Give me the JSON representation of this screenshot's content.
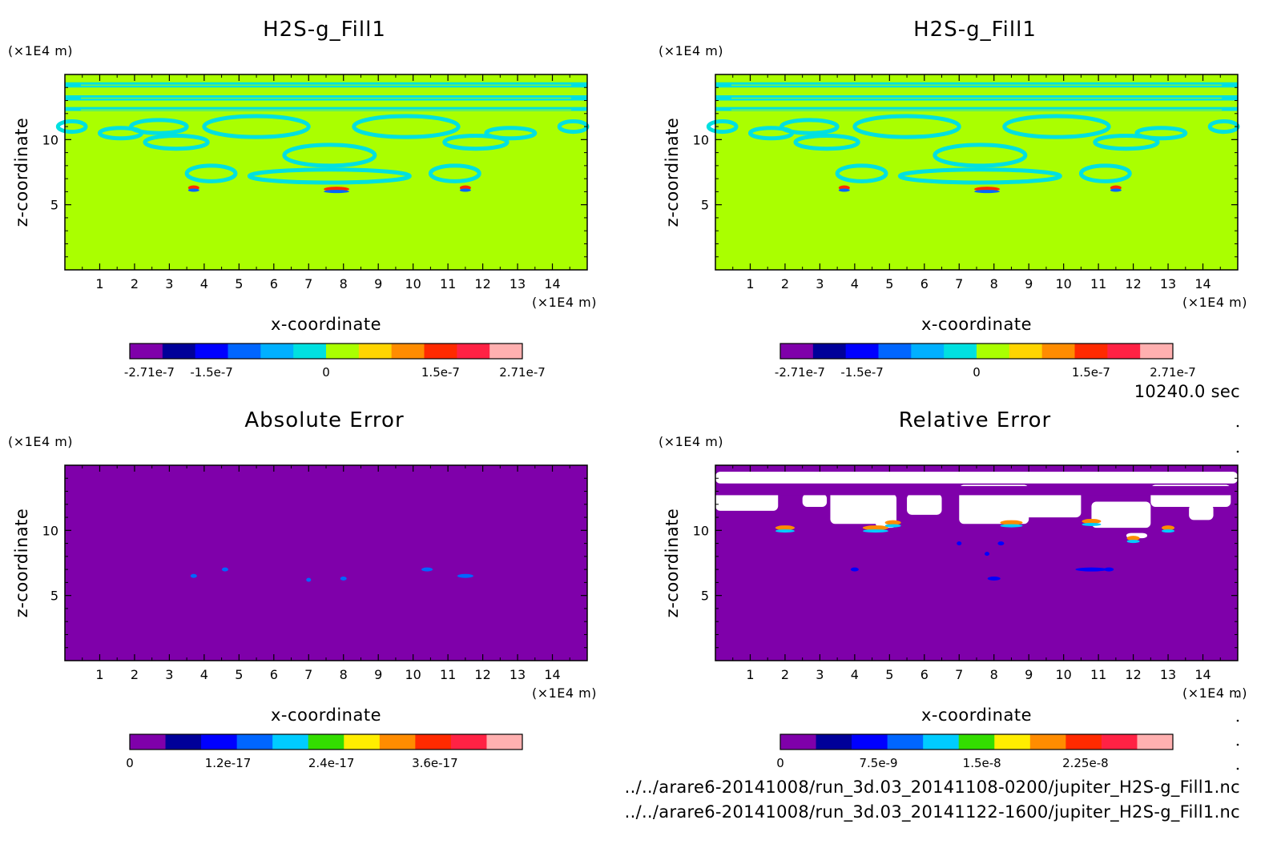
{
  "time_label": "10240.0 sec",
  "files": [
    "../../arare6-20141008/run_3d.03_20141108-0200/jupiter_H2S-g_Fill1.nc",
    "../../arare6-20141008/run_3d.03_20141122-1600/jupiter_H2S-g_Fill1.nc"
  ],
  "chart_data": [
    {
      "type": "heatmap",
      "title": "H2S-g_Fill1",
      "xlabel": "x-coordinate",
      "ylabel": "z-coordinate",
      "x_unit": "(×1E4 m)",
      "y_unit": "(×1E4 m)",
      "xlim": [
        0,
        15
      ],
      "ylim": [
        0,
        15
      ],
      "x_ticks": [
        "1",
        "2",
        "3",
        "4",
        "5",
        "6",
        "7",
        "8",
        "9",
        "10",
        "11",
        "12",
        "13",
        "14"
      ],
      "y_ticks": [
        "5",
        "10"
      ],
      "background_value": "0",
      "colorbar": {
        "colors": [
          "#7f00aa",
          "#000099",
          "#0000ff",
          "#0066ff",
          "#00b0ff",
          "#00e0e0",
          "#aaff00",
          "#ffd500",
          "#ff8c00",
          "#ff2a00",
          "#ff2244",
          "#ffb0b0"
        ],
        "ticks": [
          "-2.71e-7",
          "-1.5e-7",
          "0",
          "1.5e-7",
          "2.71e-7"
        ]
      }
    },
    {
      "type": "heatmap",
      "title": "H2S-g_Fill1",
      "xlabel": "x-coordinate",
      "ylabel": "z-coordinate",
      "x_unit": "(×1E4 m)",
      "y_unit": "(×1E4 m)",
      "xlim": [
        0,
        15
      ],
      "ylim": [
        0,
        15
      ],
      "x_ticks": [
        "1",
        "2",
        "3",
        "4",
        "5",
        "6",
        "7",
        "8",
        "9",
        "10",
        "11",
        "12",
        "13",
        "14"
      ],
      "y_ticks": [
        "5",
        "10"
      ],
      "background_value": "0",
      "colorbar": {
        "colors": [
          "#7f00aa",
          "#000099",
          "#0000ff",
          "#0066ff",
          "#00b0ff",
          "#00e0e0",
          "#aaff00",
          "#ffd500",
          "#ff8c00",
          "#ff2a00",
          "#ff2244",
          "#ffb0b0"
        ],
        "ticks": [
          "-2.71e-7",
          "-1.5e-7",
          "0",
          "1.5e-7",
          "2.71e-7"
        ]
      }
    },
    {
      "type": "heatmap",
      "title": "Absolute Error",
      "xlabel": "x-coordinate",
      "ylabel": "z-coordinate",
      "x_unit": "(×1E4 m)",
      "y_unit": "(×1E4 m)",
      "xlim": [
        0,
        15
      ],
      "ylim": [
        0,
        15
      ],
      "x_ticks": [
        "1",
        "2",
        "3",
        "4",
        "5",
        "6",
        "7",
        "8",
        "9",
        "10",
        "11",
        "12",
        "13",
        "14"
      ],
      "y_ticks": [
        "5",
        "10"
      ],
      "background_value": "0",
      "colorbar": {
        "colors": [
          "#7f00aa",
          "#000099",
          "#0000ff",
          "#0066ff",
          "#00ccff",
          "#33dd00",
          "#ffee00",
          "#ff8c00",
          "#ff2a00",
          "#ff2244",
          "#ffb0b0"
        ],
        "ticks": [
          "0",
          "1.2e-17",
          "2.4e-17",
          "3.6e-17"
        ]
      }
    },
    {
      "type": "heatmap",
      "title": "Relative Error",
      "xlabel": "x-coordinate",
      "ylabel": "z-coordinate",
      "x_unit": "(×1E4 m)",
      "y_unit": "(×1E4 m)",
      "xlim": [
        0,
        15
      ],
      "ylim": [
        0,
        15
      ],
      "x_ticks": [
        "1",
        "2",
        "3",
        "4",
        "5",
        "6",
        "7",
        "8",
        "9",
        "10",
        "11",
        "12",
        "13",
        "14"
      ],
      "y_ticks": [
        "5",
        "10"
      ],
      "background_value": "0",
      "colorbar": {
        "colors": [
          "#7f00aa",
          "#000099",
          "#0000ff",
          "#0066ff",
          "#00ccff",
          "#33dd00",
          "#ffee00",
          "#ff8c00",
          "#ff2a00",
          "#ff2244",
          "#ffb0b0"
        ],
        "ticks": [
          "0",
          "7.5e-9",
          "1.5e-8",
          "2.25e-8"
        ]
      }
    }
  ]
}
